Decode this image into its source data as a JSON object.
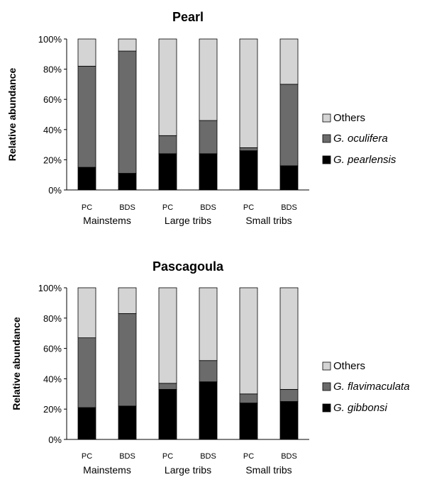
{
  "chart_data": [
    {
      "type": "bar",
      "stacked": true,
      "title": "Pearl",
      "ylabel": "Relative abundance",
      "ylim": [
        0,
        100
      ],
      "yticks": [
        "0%",
        "20%",
        "40%",
        "60%",
        "80%",
        "100%"
      ],
      "categories": [
        "PC",
        "BDS",
        "PC",
        "BDS",
        "PC",
        "BDS"
      ],
      "groups": [
        {
          "label": "Mainstems",
          "span": 2
        },
        {
          "label": "Large tribs",
          "span": 2
        },
        {
          "label": "Small tribs",
          "span": 2
        }
      ],
      "legend_position": "right",
      "series": [
        {
          "name": "G. pearlensis",
          "italic": true,
          "color": "#000000",
          "values": [
            15,
            11,
            24,
            24,
            26,
            16
          ]
        },
        {
          "name": "G. oculifera",
          "italic": true,
          "color": "#6b6b6b",
          "values": [
            67,
            81,
            12,
            22,
            2,
            54
          ]
        },
        {
          "name": "Others",
          "italic": false,
          "color": "#d4d4d4",
          "values": [
            18,
            8,
            64,
            54,
            72,
            30
          ]
        }
      ]
    },
    {
      "type": "bar",
      "stacked": true,
      "title": "Pascagoula",
      "ylabel": "Relative abundance",
      "ylim": [
        0,
        100
      ],
      "yticks": [
        "0%",
        "20%",
        "40%",
        "60%",
        "80%",
        "100%"
      ],
      "categories": [
        "PC",
        "BDS",
        "PC",
        "BDS",
        "PC",
        "BDS"
      ],
      "groups": [
        {
          "label": "Mainstems",
          "span": 2
        },
        {
          "label": "Large tribs",
          "span": 2
        },
        {
          "label": "Small tribs",
          "span": 2
        }
      ],
      "legend_position": "right",
      "series": [
        {
          "name": "G. gibbonsi",
          "italic": true,
          "color": "#000000",
          "values": [
            21,
            22,
            33,
            38,
            24,
            25
          ]
        },
        {
          "name": "G. flavimaculata",
          "italic": true,
          "color": "#6b6b6b",
          "values": [
            46,
            61,
            4,
            14,
            6,
            8
          ]
        },
        {
          "name": "Others",
          "italic": false,
          "color": "#d4d4d4",
          "values": [
            33,
            17,
            63,
            48,
            70,
            67
          ]
        }
      ]
    }
  ]
}
